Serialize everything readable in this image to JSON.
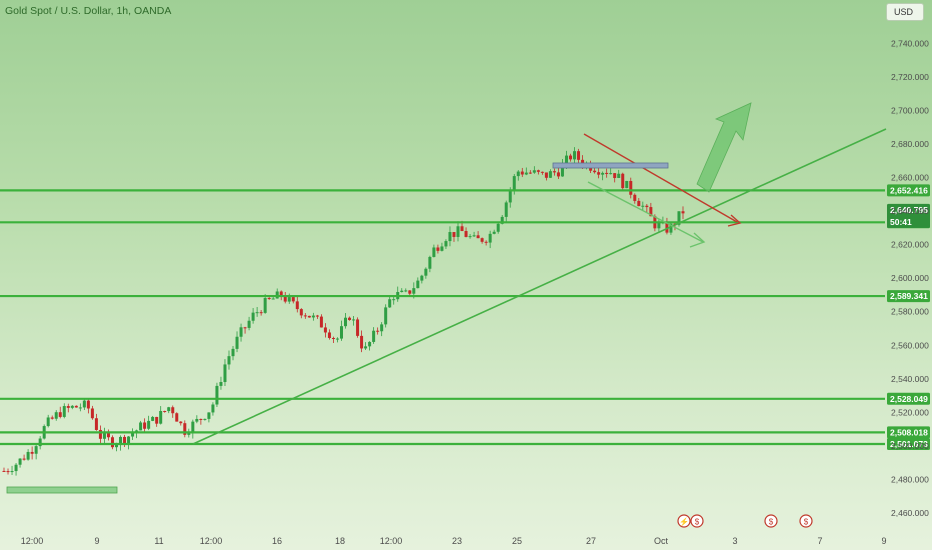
{
  "header": {
    "title": "Gold Spot / U.S. Dollar, 1h, OANDA",
    "currency": "USD"
  },
  "colors": {
    "level_line": "#3bb13b",
    "level_label_bg": "#3aa83a",
    "candle_up": "#2f9e44",
    "candle_down": "#c62828",
    "trendline_support": "#46b046",
    "trendline_resistance": "#c0392b",
    "arrow_projection": "#6cc36c"
  },
  "chart_data": {
    "type": "candlestick",
    "symbol": "Gold Spot / U.S. Dollar",
    "interval": "1h",
    "source": "OANDA",
    "ylim": [
      2455,
      2750
    ],
    "y_ticks": [
      2460,
      2480,
      2500,
      2520,
      2540,
      2560,
      2580,
      2600,
      2620,
      2640,
      2660,
      2680,
      2700,
      2720,
      2740
    ],
    "y_tick_labels": [
      "2,460.000",
      "2,480.000",
      "2,500.000",
      "2,520.000",
      "2,540.000",
      "2,560.000",
      "2,580.000",
      "2,600.000",
      "2,620.000",
      "2,640.000",
      "2,660.000",
      "2,680.000",
      "2,700.000",
      "2,720.000",
      "2,740.000"
    ],
    "x_ticks": [
      "12:00",
      "9",
      "11",
      "12:00",
      "16",
      "18",
      "12:00",
      "23",
      "25",
      "27",
      "Oct",
      "3",
      "7",
      "9"
    ],
    "horizontal_levels": [
      {
        "label": "2,652.416",
        "value": 2652.416
      },
      {
        "label": "2,633.369",
        "value": 2633.369
      },
      {
        "label": "2,589.341",
        "value": 2589.341
      },
      {
        "label": "2,528.049",
        "value": 2528.049
      },
      {
        "label": "2,508.018",
        "value": 2508.018
      },
      {
        "label": "2,501.073",
        "value": 2501.073
      }
    ],
    "current_price": {
      "label": "2,640.795",
      "value": 2640.795,
      "countdown": "50:41"
    },
    "approx_close_path": [
      2485,
      2490,
      2498,
      2512,
      2520,
      2523,
      2524,
      2505,
      2502,
      2506,
      2512,
      2516,
      2524,
      2509,
      2515,
      2523,
      2550,
      2566,
      2578,
      2586,
      2590,
      2583,
      2578,
      2572,
      2563,
      2579,
      2556,
      2570,
      2590,
      2590,
      2599,
      2617,
      2626,
      2628,
      2622,
      2625,
      2640,
      2664,
      2663,
      2661,
      2664,
      2674,
      2668,
      2665,
      2663,
      2654,
      2644,
      2632,
      2629,
      2640
    ]
  }
}
